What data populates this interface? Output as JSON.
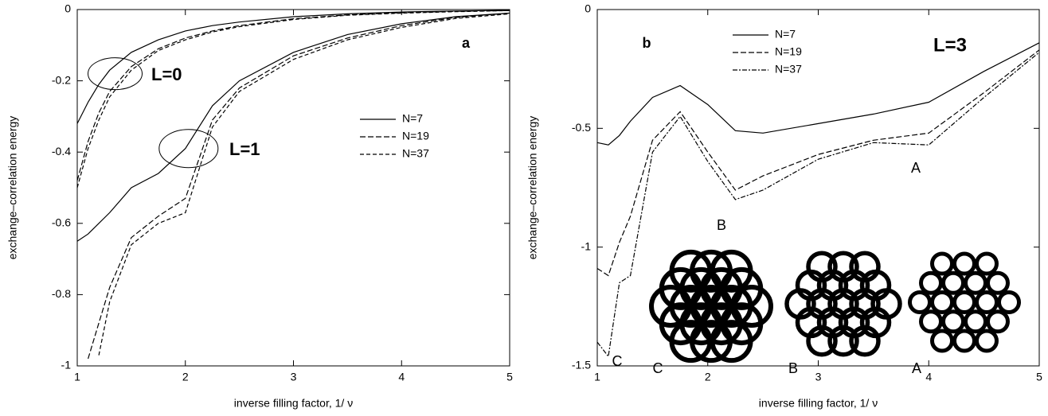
{
  "chart_data": [
    {
      "type": "line",
      "panel_label": "a",
      "xlabel": "inverse filling factor, 1/ ν",
      "ylabel": "exchange–correlation energy",
      "x": [
        1,
        1.1,
        1.2,
        1.3,
        1.5,
        1.75,
        2,
        2.25,
        2.5,
        3,
        3.5,
        4,
        4.5,
        5
      ],
      "xlim": [
        1,
        5
      ],
      "xticks": [
        1,
        2,
        3,
        4,
        5
      ],
      "ylim": [
        -1,
        0
      ],
      "yticks": [
        0,
        -0.2,
        -0.4,
        -0.6,
        -0.8,
        -1
      ],
      "annotations": [
        "L=0",
        "L=1"
      ],
      "series": [
        {
          "name": "N=7",
          "color": "#000000",
          "dash": "none",
          "values": [
            [
              -0.32,
              -0.26,
              -0.21,
              -0.17,
              -0.12,
              -0.085,
              -0.06,
              -0.045,
              -0.035,
              -0.02,
              -0.012,
              -0.007,
              -0.004,
              -0.002
            ],
            [
              -0.65,
              -0.63,
              -0.6,
              -0.57,
              -0.5,
              -0.46,
              -0.39,
              -0.27,
              -0.2,
              -0.12,
              -0.07,
              -0.04,
              -0.02,
              -0.01
            ]
          ]
        },
        {
          "name": "N=19",
          "color": "#000000",
          "dash": "7,3",
          "values": [
            [
              -0.48,
              -0.37,
              -0.29,
              -0.23,
              -0.16,
              -0.11,
              -0.08,
              -0.06,
              -0.045,
              -0.026,
              -0.015,
              -0.009,
              -0.005,
              -0.003
            ],
            [
              null,
              -0.98,
              -0.88,
              -0.78,
              -0.64,
              -0.58,
              -0.53,
              -0.31,
              -0.22,
              -0.13,
              -0.08,
              -0.045,
              -0.022,
              -0.01
            ]
          ]
        },
        {
          "name": "N=37",
          "color": "#000000",
          "dash": "5,3",
          "values": [
            [
              -0.5,
              -0.39,
              -0.31,
              -0.245,
              -0.17,
              -0.115,
              -0.085,
              -0.063,
              -0.048,
              -0.028,
              -0.016,
              -0.01,
              -0.006,
              -0.003
            ],
            [
              null,
              null,
              -0.97,
              -0.82,
              -0.66,
              -0.6,
              -0.57,
              -0.33,
              -0.23,
              -0.14,
              -0.085,
              -0.05,
              -0.025,
              -0.012
            ]
          ]
        }
      ]
    },
    {
      "type": "line",
      "panel_label": "b",
      "xlabel": "inverse filling factor, 1/ ν",
      "ylabel": "exchange–correlation energy",
      "x": [
        1,
        1.1,
        1.2,
        1.3,
        1.5,
        1.75,
        2,
        2.25,
        2.5,
        3,
        3.5,
        4,
        4.5,
        5
      ],
      "xlim": [
        1,
        5
      ],
      "xticks": [
        1,
        2,
        3,
        4,
        5
      ],
      "ylim": [
        -1.5,
        0
      ],
      "yticks": [
        0,
        -0.5,
        -1,
        -1.5
      ],
      "annotations": [
        "L=3"
      ],
      "point_labels": [
        "A",
        "B",
        "C"
      ],
      "diagram_labels": [
        "C",
        "B",
        "A"
      ],
      "series": [
        {
          "name": "N=7",
          "color": "#000000",
          "dash": "none",
          "values": [
            -0.56,
            -0.57,
            -0.53,
            -0.47,
            -0.37,
            -0.32,
            -0.4,
            -0.51,
            -0.52,
            -0.48,
            -0.44,
            -0.39,
            -0.26,
            -0.14
          ]
        },
        {
          "name": "N=19",
          "color": "#000000",
          "dash": "7,3",
          "values": [
            -1.09,
            -1.12,
            -0.98,
            -0.87,
            -0.55,
            -0.43,
            -0.6,
            -0.76,
            -0.7,
            -0.61,
            -0.55,
            -0.52,
            -0.35,
            -0.17
          ]
        },
        {
          "name": "N=37",
          "color": "#000000",
          "dash": "6,2,2,2",
          "values": [
            -1.4,
            -1.46,
            -1.15,
            -1.12,
            -0.6,
            -0.45,
            -0.64,
            -0.8,
            -0.76,
            -0.63,
            -0.56,
            -0.57,
            -0.37,
            -0.18
          ]
        }
      ]
    }
  ]
}
